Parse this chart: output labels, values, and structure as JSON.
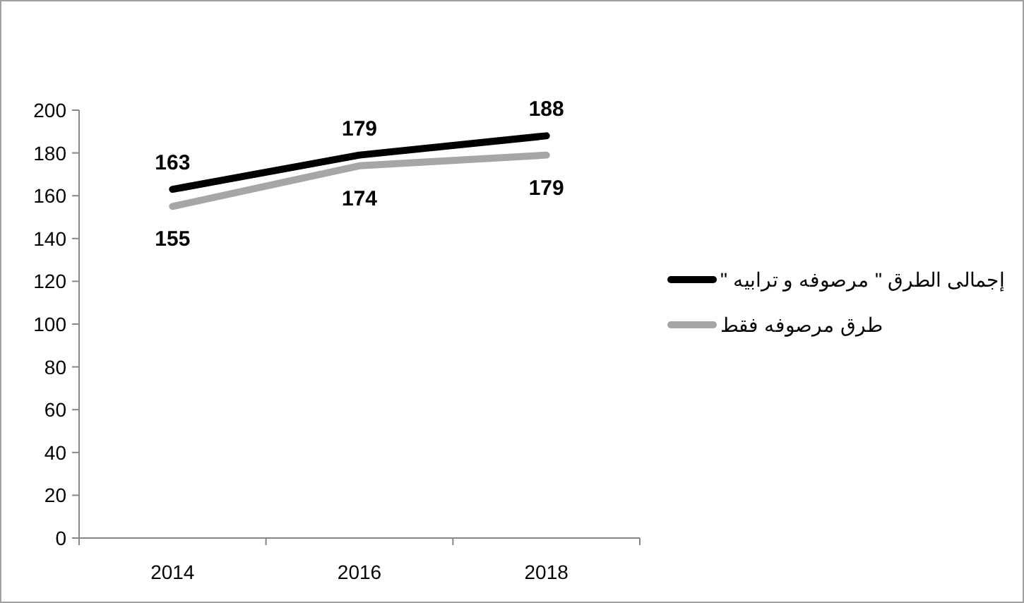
{
  "chart_data": {
    "type": "line",
    "categories": [
      "2014",
      "2016",
      "2018"
    ],
    "series": [
      {
        "name": "إجمالى الطرق \" مرصوفه و ترابيه \"",
        "color": "#000000",
        "values": [
          163,
          179,
          188
        ]
      },
      {
        "name": "طرق مرصوفه فقط",
        "color": "#a6a6a6",
        "values": [
          155,
          174,
          179
        ]
      }
    ],
    "ylim": [
      0,
      200
    ],
    "yticks": [
      0,
      20,
      40,
      60,
      80,
      100,
      120,
      140,
      160,
      180,
      200
    ],
    "data_labels": true,
    "grid": false,
    "legend": "right",
    "marker": "none",
    "line_style": "solid"
  }
}
